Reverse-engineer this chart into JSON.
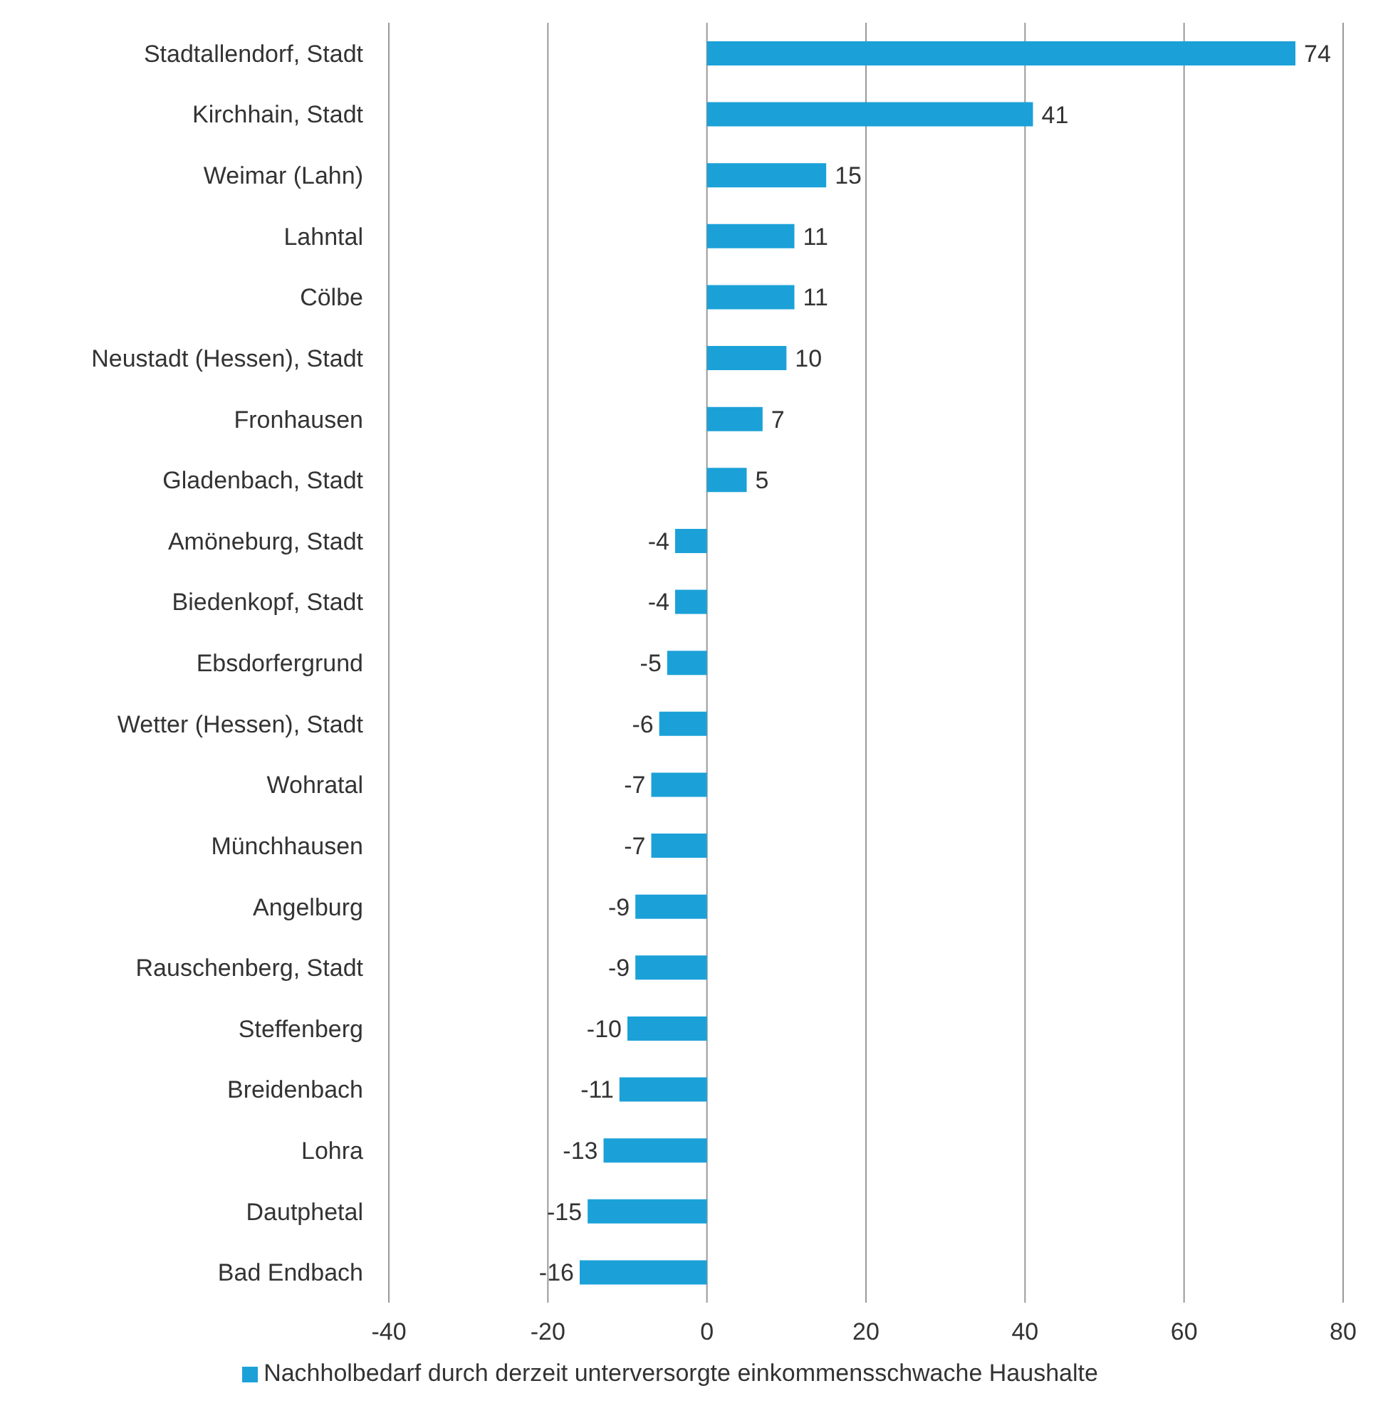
{
  "chart_data": {
    "type": "bar",
    "orientation": "horizontal",
    "categories": [
      "Stadtallendorf, Stadt",
      "Kirchhain, Stadt",
      "Weimar (Lahn)",
      "Lahntal",
      "Cölbe",
      "Neustadt (Hessen), Stadt",
      "Fronhausen",
      "Gladenbach, Stadt",
      "Amöneburg, Stadt",
      "Biedenkopf, Stadt",
      "Ebsdorfergrund",
      "Wetter (Hessen), Stadt",
      "Wohratal",
      "Münchhausen",
      "Angelburg",
      "Rauschenberg, Stadt",
      "Steffenberg",
      "Breidenbach",
      "Lohra",
      "Dautphetal",
      "Bad Endbach"
    ],
    "series": [
      {
        "name": "Nachholbedarf durch derzeit unterversorgte einkommensschwache Haushalte",
        "color": "#1ba1d8",
        "values": [
          74,
          41,
          15,
          11,
          11,
          10,
          7,
          5,
          -4,
          -4,
          -5,
          -6,
          -7,
          -7,
          -9,
          -9,
          -10,
          -11,
          -13,
          -15,
          -16
        ]
      }
    ],
    "xlim": [
      -40,
      80
    ],
    "xticks": [
      -40,
      -20,
      0,
      20,
      40,
      60,
      80
    ],
    "grid": "x",
    "data_labels": true,
    "legend": "bottom"
  }
}
